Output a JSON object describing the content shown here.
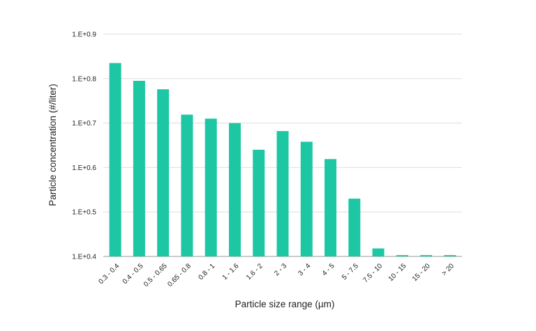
{
  "chart_data": {
    "type": "bar",
    "title": "",
    "xlabel": "Particle size range (µm)",
    "ylabel": "Particle concentration (#/liter)",
    "scale": "log",
    "grid": true,
    "ylim_log10": [
      4,
      9
    ],
    "ytick_labels": [
      "1.E+0.4",
      "1.E+0.5",
      "1.E+0.6",
      "1.E+0.7",
      "1.E+0.8",
      "1.E+0.9"
    ],
    "categories": [
      "0.3 - 0.4",
      "0.4 - 0.5",
      "0.5 - 0.65",
      "0.65 - 0.8",
      "0.8 - 1",
      "1 - 1.6",
      "1.6 - 2",
      "2 - 3",
      "3 - 4",
      "4 - 5",
      "5 - 7.5",
      "7.5 - 10",
      "10 - 15",
      "15 - 20",
      "> 20"
    ],
    "values_log10": [
      8.35,
      7.95,
      7.76,
      7.19,
      7.1,
      7.0,
      6.4,
      6.82,
      6.58,
      6.19,
      5.3,
      4.18,
      4.03,
      4.03,
      4.03
    ],
    "colors": {
      "bar": "#1dc7a3",
      "grid": "#dddddd",
      "axis": "#999999"
    }
  }
}
